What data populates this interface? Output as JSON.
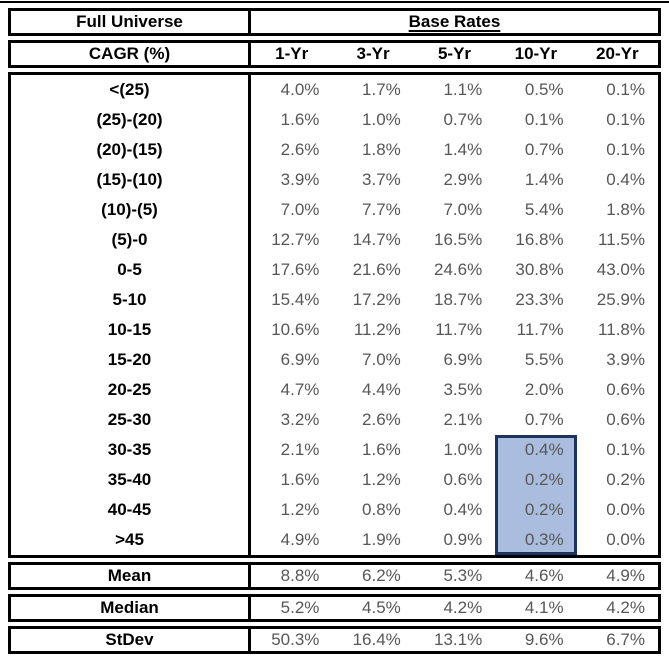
{
  "colors": {
    "highlight_fill": "#aabdde",
    "highlight_border": "#1c335c",
    "value_text": "#575757",
    "border_black": "#000000"
  },
  "chart_data": {
    "type": "table",
    "title_left": "Full Universe",
    "title_right": "Base Rates",
    "row_label_header": "CAGR (%)",
    "columns": [
      "1-Yr",
      "3-Yr",
      "5-Yr",
      "10-Yr",
      "20-Yr"
    ],
    "rows": [
      {
        "label": "<(25)",
        "values": [
          "4.0%",
          "1.7%",
          "1.1%",
          "0.5%",
          "0.1%"
        ]
      },
      {
        "label": "(25)-(20)",
        "values": [
          "1.6%",
          "1.0%",
          "0.7%",
          "0.1%",
          "0.1%"
        ]
      },
      {
        "label": "(20)-(15)",
        "values": [
          "2.6%",
          "1.8%",
          "1.4%",
          "0.7%",
          "0.1%"
        ]
      },
      {
        "label": "(15)-(10)",
        "values": [
          "3.9%",
          "3.7%",
          "2.9%",
          "1.4%",
          "0.4%"
        ]
      },
      {
        "label": "(10)-(5)",
        "values": [
          "7.0%",
          "7.7%",
          "7.0%",
          "5.4%",
          "1.8%"
        ]
      },
      {
        "label": "(5)-0",
        "values": [
          "12.7%",
          "14.7%",
          "16.5%",
          "16.8%",
          "11.5%"
        ]
      },
      {
        "label": "0-5",
        "values": [
          "17.6%",
          "21.6%",
          "24.6%",
          "30.8%",
          "43.0%"
        ]
      },
      {
        "label": "5-10",
        "values": [
          "15.4%",
          "17.2%",
          "18.7%",
          "23.3%",
          "25.9%"
        ]
      },
      {
        "label": "10-15",
        "values": [
          "10.6%",
          "11.2%",
          "11.7%",
          "11.7%",
          "11.8%"
        ]
      },
      {
        "label": "15-20",
        "values": [
          "6.9%",
          "7.0%",
          "6.9%",
          "5.5%",
          "3.9%"
        ]
      },
      {
        "label": "20-25",
        "values": [
          "4.7%",
          "4.4%",
          "3.5%",
          "2.0%",
          "0.6%"
        ]
      },
      {
        "label": "25-30",
        "values": [
          "3.2%",
          "2.6%",
          "2.1%",
          "0.7%",
          "0.6%"
        ]
      },
      {
        "label": "30-35",
        "values": [
          "2.1%",
          "1.6%",
          "1.0%",
          "0.4%",
          "0.1%"
        ]
      },
      {
        "label": "35-40",
        "values": [
          "1.6%",
          "1.2%",
          "0.6%",
          "0.2%",
          "0.2%"
        ]
      },
      {
        "label": "40-45",
        "values": [
          "1.2%",
          "0.8%",
          "0.4%",
          "0.2%",
          "0.0%"
        ]
      },
      {
        "label": ">45",
        "values": [
          "4.9%",
          "1.9%",
          "0.9%",
          "0.3%",
          "0.0%"
        ]
      }
    ],
    "summary": [
      {
        "label": "Mean",
        "values": [
          "8.8%",
          "6.2%",
          "5.3%",
          "4.6%",
          "4.9%"
        ]
      },
      {
        "label": "Median",
        "values": [
          "5.2%",
          "4.5%",
          "4.2%",
          "4.1%",
          "4.2%"
        ]
      },
      {
        "label": "StDev",
        "values": [
          "50.3%",
          "16.4%",
          "13.1%",
          "9.6%",
          "6.7%"
        ]
      }
    ],
    "highlight": {
      "column": "10-Yr",
      "rows": [
        "30-35",
        "35-40",
        "40-45",
        ">45"
      ]
    },
    "layout": {
      "grid": "off",
      "value_alignment": "right",
      "label_alignment": "center"
    }
  }
}
